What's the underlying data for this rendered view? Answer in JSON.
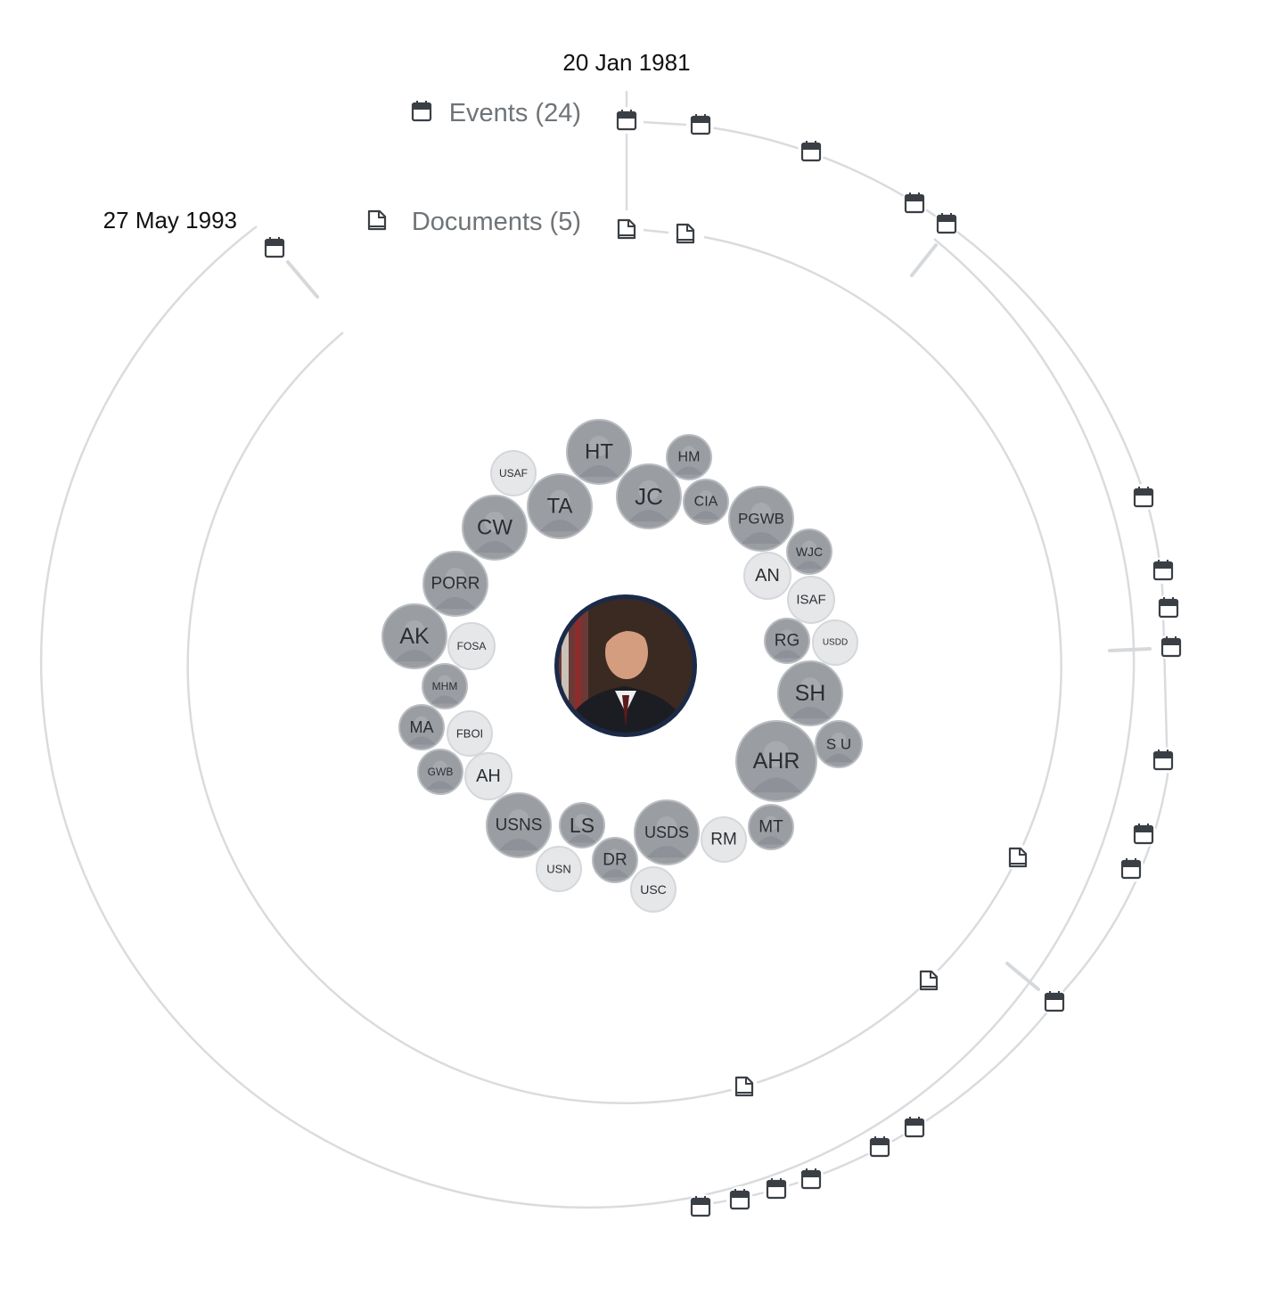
{
  "timeline": {
    "start_date": "20 Jan 1981",
    "end_date": "27 May 1993"
  },
  "legend": {
    "events_label": "Events (24)",
    "documents_label": "Documents (5)",
    "events_icon": "calendar-icon",
    "documents_icon": "document-icon"
  },
  "center": {
    "icon": "portrait-photo"
  },
  "entities": [
    {
      "label": "HT"
    },
    {
      "label": "HM"
    },
    {
      "label": "USAF"
    },
    {
      "label": "JC"
    },
    {
      "label": "TA"
    },
    {
      "label": "CIA"
    },
    {
      "label": "CW"
    },
    {
      "label": "PGWB"
    },
    {
      "label": "WJC"
    },
    {
      "label": "AN"
    },
    {
      "label": "PORR"
    },
    {
      "label": "ISAF"
    },
    {
      "label": "AK"
    },
    {
      "label": "FOSA"
    },
    {
      "label": "RG"
    },
    {
      "label": "USDD"
    },
    {
      "label": "MHM"
    },
    {
      "label": "SH"
    },
    {
      "label": "MA"
    },
    {
      "label": "FBOI"
    },
    {
      "label": "S U"
    },
    {
      "label": "AHR"
    },
    {
      "label": "GWB"
    },
    {
      "label": "AH"
    },
    {
      "label": "USNS"
    },
    {
      "label": "LS"
    },
    {
      "label": "USDS"
    },
    {
      "label": "MT"
    },
    {
      "label": "RM"
    },
    {
      "label": "DR"
    },
    {
      "label": "USN"
    },
    {
      "label": "USC"
    }
  ],
  "colors": {
    "ring": "#d9dcdf",
    "entity_photo": "#9a9ea3",
    "entity_light": "#e6e7e9",
    "icon": "#3a3f45",
    "center_border": "#1b2a48"
  }
}
